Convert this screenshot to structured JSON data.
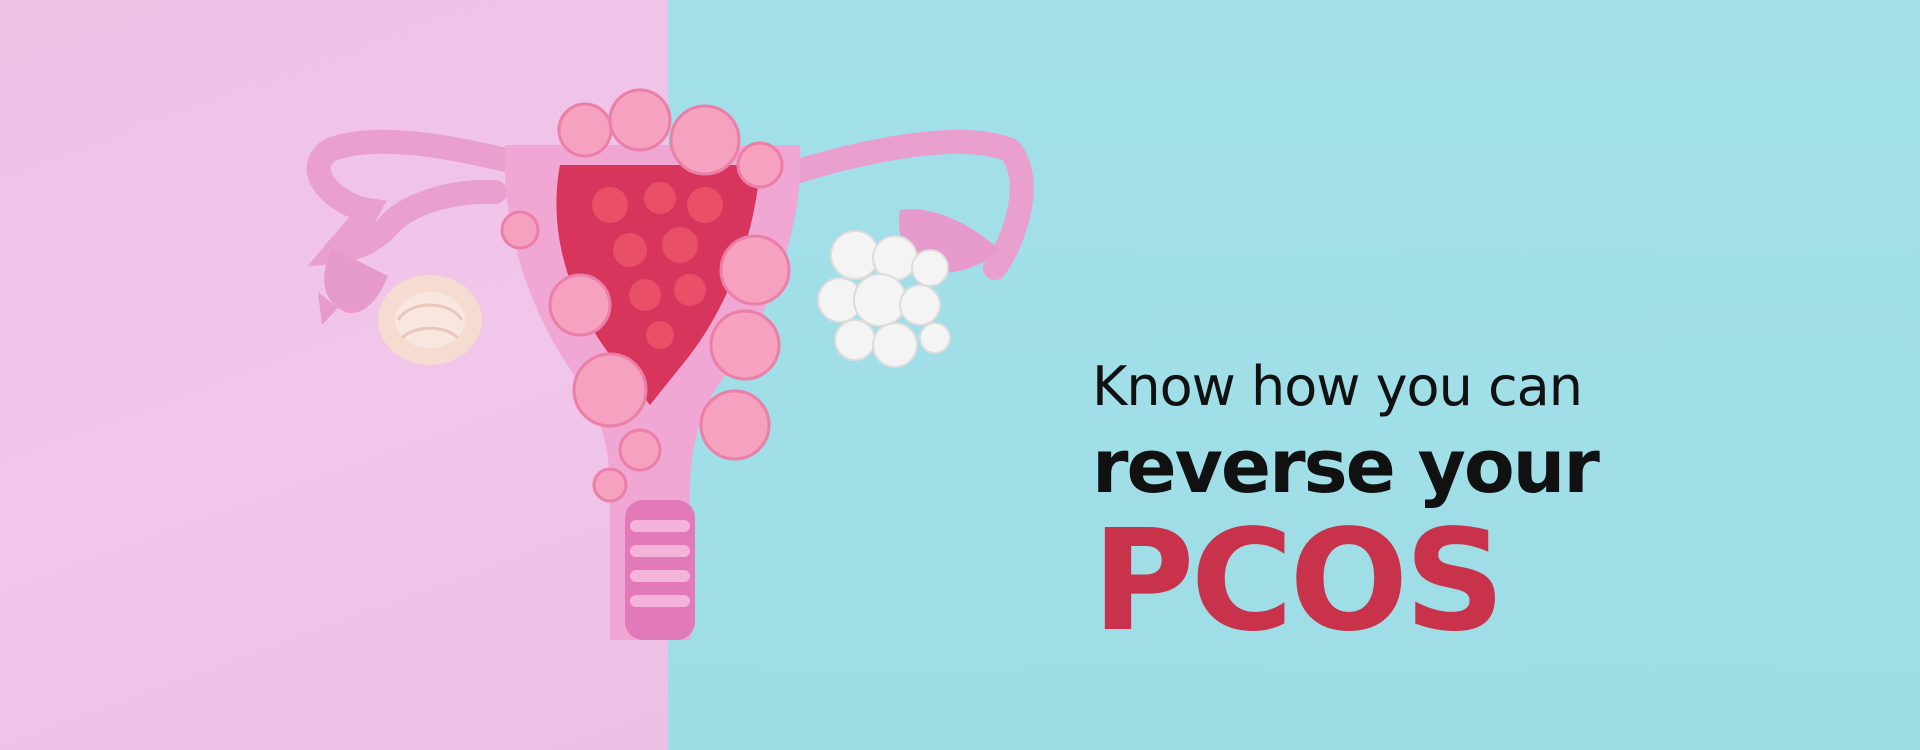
{
  "banner": {
    "headline": {
      "line1": "Know how you can",
      "line2": "reverse your",
      "line3": "PCOS"
    }
  },
  "colors": {
    "left_background": "#efc2e6",
    "right_background": "#a3e0ea",
    "headline_text": "#111111",
    "accent_text": "#c8324a"
  },
  "illustration": {
    "icon": "paper-craft-uterus-with-flowers-icon"
  }
}
